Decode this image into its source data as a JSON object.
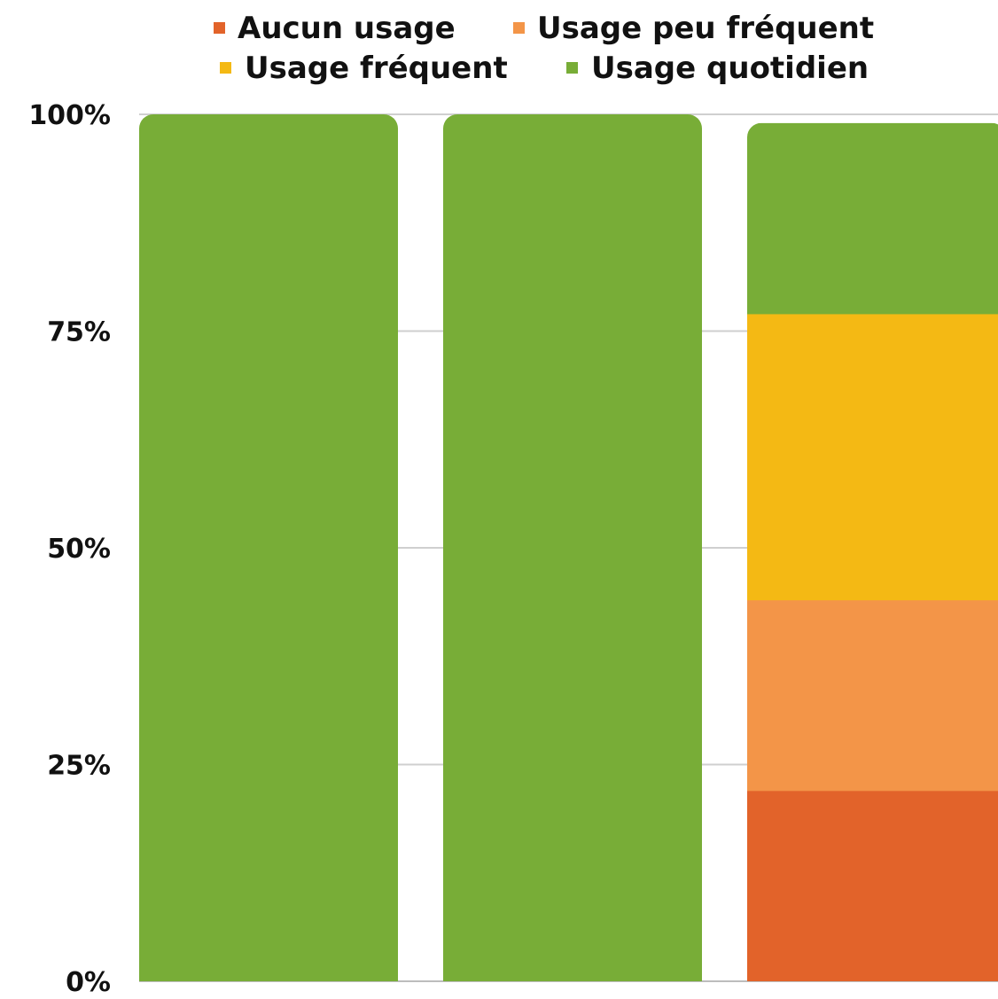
{
  "chart_data": {
    "type": "bar",
    "stacked": true,
    "categories": [
      "",
      "",
      ""
    ],
    "series": [
      {
        "name": "Aucun usage",
        "color": "#E2632A",
        "values": [
          0,
          0,
          22
        ]
      },
      {
        "name": "Usage peu fréquent",
        "color": "#F39548",
        "values": [
          0,
          0,
          22
        ]
      },
      {
        "name": "Usage fréquent",
        "color": "#F4B914",
        "values": [
          0,
          0,
          33
        ]
      },
      {
        "name": "Usage quotidien",
        "color": "#78AD37",
        "values": [
          100,
          100,
          22
        ]
      }
    ],
    "ylim": [
      0,
      100
    ],
    "yticks": [
      "0%",
      "25%",
      "50%",
      "75%",
      "100%"
    ],
    "title": "",
    "xlabel": "",
    "ylabel": "",
    "legend_position": "top",
    "grid": true
  }
}
